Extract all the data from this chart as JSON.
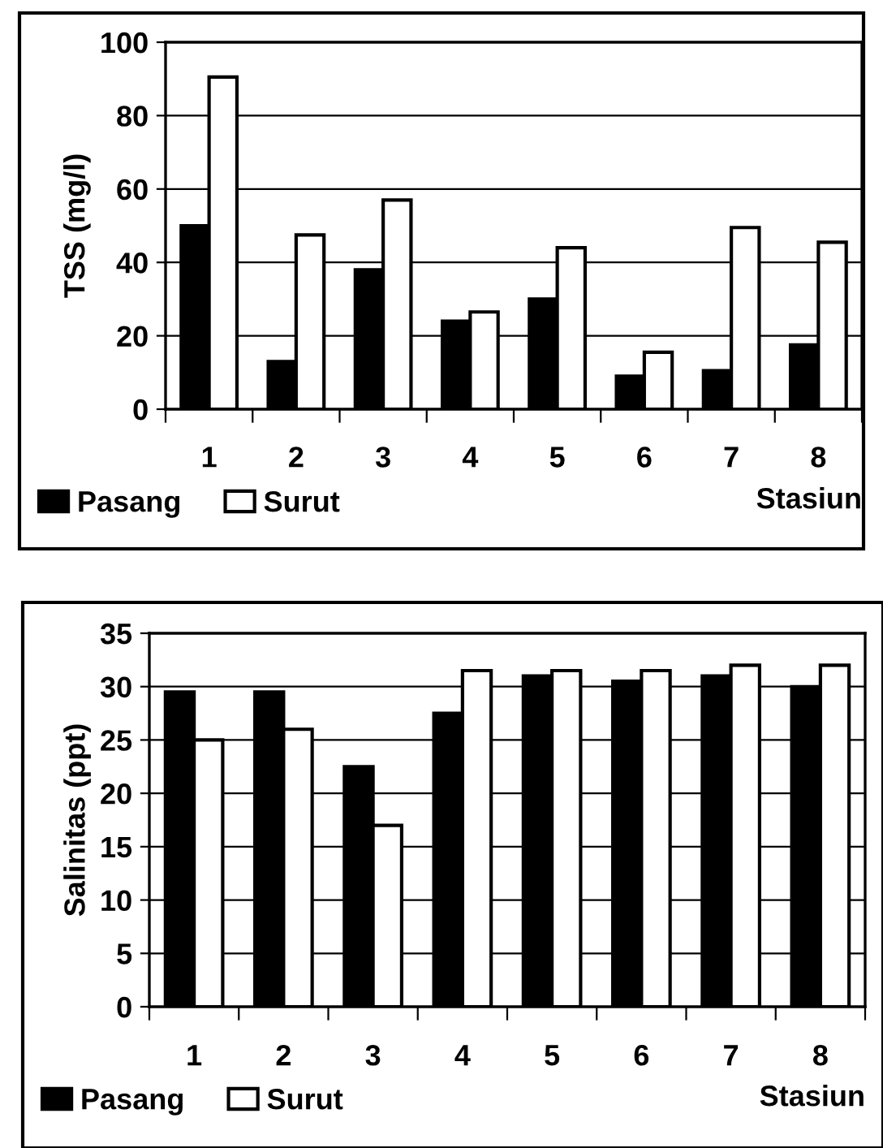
{
  "chart_data": [
    {
      "type": "bar",
      "ylabel": "TSS (mg/l)",
      "xlabel": "Stasiun",
      "categories": [
        "1",
        "2",
        "3",
        "4",
        "5",
        "6",
        "7",
        "8"
      ],
      "series": [
        {
          "name": "Pasang",
          "color": "#000000",
          "values": [
            50,
            13,
            38,
            24,
            30,
            9,
            10.5,
            17.5
          ]
        },
        {
          "name": "Surut",
          "color": "#ffffff",
          "values": [
            90.5,
            47.5,
            57,
            26.5,
            44,
            15.5,
            49.5,
            45.5
          ]
        }
      ],
      "ylim": [
        0,
        100
      ],
      "yticks": [
        0,
        20,
        40,
        60,
        80,
        100
      ],
      "grid": "y",
      "legend": "bottom"
    },
    {
      "type": "bar",
      "ylabel": "Salinitas (ppt)",
      "xlabel": "Stasiun",
      "categories": [
        "1",
        "2",
        "3",
        "4",
        "5",
        "6",
        "7",
        "8"
      ],
      "series": [
        {
          "name": "Pasang",
          "color": "#000000",
          "values": [
            29.5,
            29.5,
            22.5,
            27.5,
            31,
            30.5,
            31,
            30
          ]
        },
        {
          "name": "Surut",
          "color": "#ffffff",
          "values": [
            25,
            26,
            17,
            31.5,
            31.5,
            31.5,
            32,
            32
          ]
        }
      ],
      "ylim": [
        0,
        35
      ],
      "yticks": [
        0,
        5,
        10,
        15,
        20,
        25,
        30,
        35
      ],
      "grid": "y",
      "legend": "bottom"
    }
  ]
}
